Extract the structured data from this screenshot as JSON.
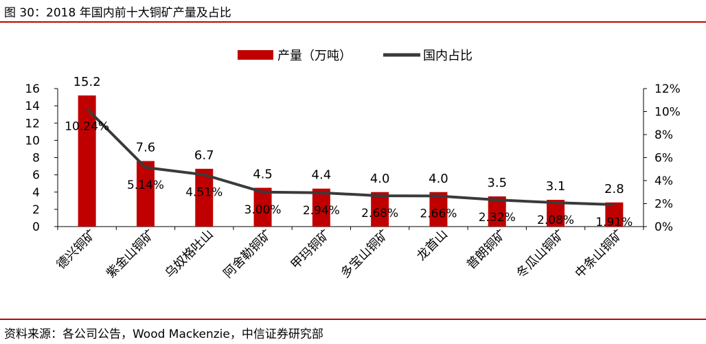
{
  "figure": {
    "title": "图 30：2018 年国内前十大铜矿产量及占比",
    "source": "资料来源：各公司公告，Wood Mackenzie，中信证券研究部"
  },
  "colors": {
    "bar": "#c00000",
    "line": "#3a3a3a",
    "axis": "#000000",
    "rule": "#c00000"
  },
  "chart_data": {
    "type": "bar+line",
    "categories": [
      "德兴铜矿",
      "紫金山铜矿",
      "乌奴格吐山",
      "阿舍勒铜矿",
      "甲玛铜矿",
      "多宝山铜矿",
      "龙首山",
      "普朗铜矿",
      "冬瓜山铜矿",
      "中条山铜矿"
    ],
    "series": [
      {
        "name": "产量（万吨）",
        "type": "bar",
        "axis": "left",
        "values": [
          15.2,
          7.6,
          6.7,
          4.5,
          4.4,
          4.0,
          4.0,
          3.5,
          3.1,
          2.8
        ],
        "labels": [
          "15.2",
          "7.6",
          "6.7",
          "4.5",
          "4.4",
          "4.0",
          "4.0",
          "3.5",
          "3.1",
          "2.8"
        ]
      },
      {
        "name": "国内占比",
        "type": "line",
        "axis": "right",
        "values": [
          10.24,
          5.14,
          4.51,
          3.0,
          2.94,
          2.68,
          2.66,
          2.32,
          2.08,
          1.91
        ],
        "labels": [
          "10.24%",
          "5.14%",
          "4.51%",
          "3.00%",
          "2.94%",
          "2.68%",
          "2.66%",
          "2.32%",
          "2.08%",
          "1.91%"
        ]
      }
    ],
    "y_left": {
      "ylim": [
        0,
        16
      ],
      "ticks": [
        "0",
        "2",
        "4",
        "6",
        "8",
        "10",
        "12",
        "14",
        "16"
      ]
    },
    "y_right": {
      "ylim": [
        0,
        12
      ],
      "ticks": [
        "0%",
        "2%",
        "4%",
        "6%",
        "8%",
        "10%",
        "12%"
      ]
    },
    "legend": {
      "position": "top-center"
    },
    "grid": false
  }
}
